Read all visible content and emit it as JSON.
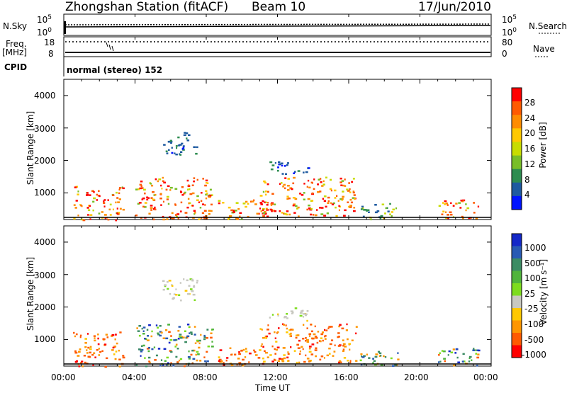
{
  "header": {
    "station": "Zhongshan Station (fitACF)",
    "beam": "Beam 10",
    "date": "17/Jun/2010"
  },
  "strip": {
    "nsky_label": "N.Sky",
    "nsky_hi": "10^5",
    "nsky_lo": "10^0",
    "nsearch_label": "N.Search",
    "nsearch_hi": "10^5",
    "nsearch_lo": "10^0",
    "freq_label": "Freq.",
    "freq_unit": "[MHz]",
    "freq_hi": "18",
    "freq_lo": "8",
    "nave_label": "Nave",
    "nave_hi": "80",
    "nave_lo": "0",
    "cpid_label": "CPID",
    "cpid_text": "normal (stereo) 152"
  },
  "axes": {
    "ylabel": "Slant Range [km]",
    "xlabel": "Time UT",
    "yticks": [
      "4000",
      "3000",
      "2000",
      "1000"
    ],
    "xticks": [
      "00:00",
      "04:00",
      "08:00",
      "12:00",
      "16:00",
      "20:00",
      "00:00"
    ]
  },
  "colorbars": {
    "power": {
      "label": "Power [dB]",
      "ticks": [
        "28",
        "24",
        "20",
        "16",
        "12",
        "8",
        "4"
      ],
      "colors": [
        "#ff0000",
        "#ff5a00",
        "#ff8c00",
        "#ffc800",
        "#c8dc00",
        "#78be28",
        "#2d8c50",
        "#1e5aa0",
        "#0014ff"
      ]
    },
    "velocity": {
      "label": "Velocity [m s⁻¹]",
      "ticks": [
        "1000",
        "500",
        "100",
        "25",
        "-25",
        "-100",
        "-500",
        "-1000"
      ],
      "colors": [
        "#1428c8",
        "#285ab4",
        "#3c8c64",
        "#50b43c",
        "#7ddc1e",
        "#c8c8c0",
        "#ffc800",
        "#ff9600",
        "#ff5a00",
        "#ff0000"
      ]
    }
  },
  "chart_data": [
    {
      "type": "heatmap",
      "panel": "power",
      "x_range_hours": [
        0,
        24
      ],
      "y_range_km": [
        180,
        4500
      ],
      "colorbar_range_db": [
        0,
        32
      ],
      "regions": [
        {
          "t0": 0.5,
          "t1": 3.3,
          "r0": 180,
          "r1": 1250,
          "level": "mixed-high"
        },
        {
          "t0": 4.0,
          "t1": 8.3,
          "r0": 200,
          "r1": 1500,
          "level": "mixed-high"
        },
        {
          "t0": 5.5,
          "t1": 7.5,
          "r0": 2200,
          "r1": 2900,
          "level": "low"
        },
        {
          "t0": 8.6,
          "t1": 11.3,
          "r0": 200,
          "r1": 800,
          "level": "mixed-high"
        },
        {
          "t0": 11.0,
          "t1": 16.4,
          "r0": 300,
          "r1": 1500,
          "level": "mixed-high"
        },
        {
          "t0": 11.5,
          "t1": 13.8,
          "r0": 1600,
          "r1": 2000,
          "level": "low"
        },
        {
          "t0": 16.5,
          "t1": 18.8,
          "r0": 200,
          "r1": 700,
          "level": "low-mid"
        },
        {
          "t0": 21.0,
          "t1": 23.3,
          "r0": 200,
          "r1": 800,
          "level": "mixed-high"
        }
      ]
    },
    {
      "type": "heatmap",
      "panel": "velocity",
      "x_range_hours": [
        0,
        24
      ],
      "y_range_km": [
        180,
        4500
      ],
      "colorbar_range_ms": [
        -1000,
        1000
      ],
      "regions": [
        {
          "t0": 0.5,
          "t1": 3.3,
          "r0": 180,
          "r1": 1250,
          "level": "negative"
        },
        {
          "t0": 4.0,
          "t1": 8.3,
          "r0": 200,
          "r1": 1500,
          "level": "mixed"
        },
        {
          "t0": 5.5,
          "t1": 7.5,
          "r0": 2200,
          "r1": 2900,
          "level": "near-zero"
        },
        {
          "t0": 8.6,
          "t1": 11.3,
          "r0": 200,
          "r1": 800,
          "level": "negative"
        },
        {
          "t0": 11.0,
          "t1": 16.4,
          "r0": 300,
          "r1": 1500,
          "level": "negative"
        },
        {
          "t0": 11.5,
          "t1": 13.8,
          "r0": 1600,
          "r1": 2000,
          "level": "near-zero"
        },
        {
          "t0": 16.5,
          "t1": 18.8,
          "r0": 200,
          "r1": 700,
          "level": "positive"
        },
        {
          "t0": 21.0,
          "t1": 23.3,
          "r0": 200,
          "r1": 800,
          "level": "mixed"
        }
      ]
    }
  ]
}
